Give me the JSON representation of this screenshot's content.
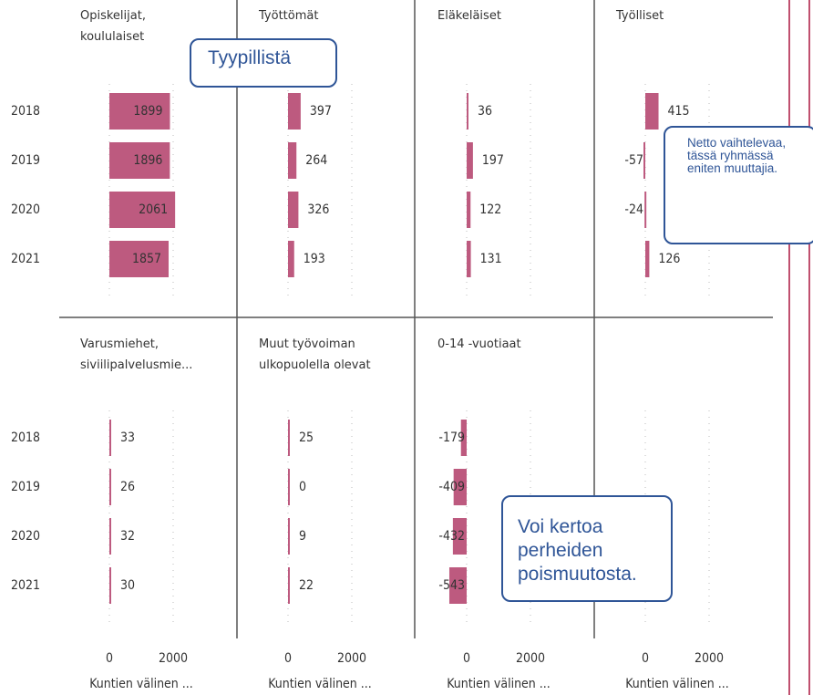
{
  "chart_data": {
    "type": "bar",
    "orientation": "horizontal",
    "categories": [
      "2018",
      "2019",
      "2020",
      "2021"
    ],
    "series": [
      {
        "name": "Opiskelijat, koululaiset",
        "color": "#bd5a7f",
        "values": [
          1899,
          1896,
          2061,
          1857
        ]
      },
      {
        "name": "Työttömät",
        "color": "#bd5a7f",
        "values": [
          397,
          264,
          326,
          193
        ]
      },
      {
        "name": "Eläkeläiset",
        "color": "#bd5a7f",
        "values": [
          36,
          197,
          122,
          131
        ]
      },
      {
        "name": "Työlliset",
        "color": "#bd5a7f",
        "values": [
          415,
          -57,
          -24,
          126
        ]
      },
      {
        "name": "Varusmiehet, siviilipalvelusmie...",
        "color": "#bd5a7f",
        "values": [
          33,
          26,
          32,
          30
        ]
      },
      {
        "name": "Muut työvoiman ulkopuolella olevat",
        "color": "#bd5a7f",
        "values": [
          25,
          0,
          9,
          22
        ]
      },
      {
        "name": "0-14 -vuotiaat",
        "color": "#bd5a7f",
        "values": [
          -179,
          -409,
          -432,
          -543
        ]
      }
    ],
    "xlim": [
      -1500,
      3700
    ],
    "xticks": [
      0,
      2000
    ],
    "xlabel": "Kuntien välinen ...",
    "grid": true,
    "annotations": [
      "Tyypillistä",
      "Netto vaihtelevaa, tässä ryhmässä eniten muuttajia.",
      "Voi kertoa perheiden poismuutosta."
    ]
  }
}
